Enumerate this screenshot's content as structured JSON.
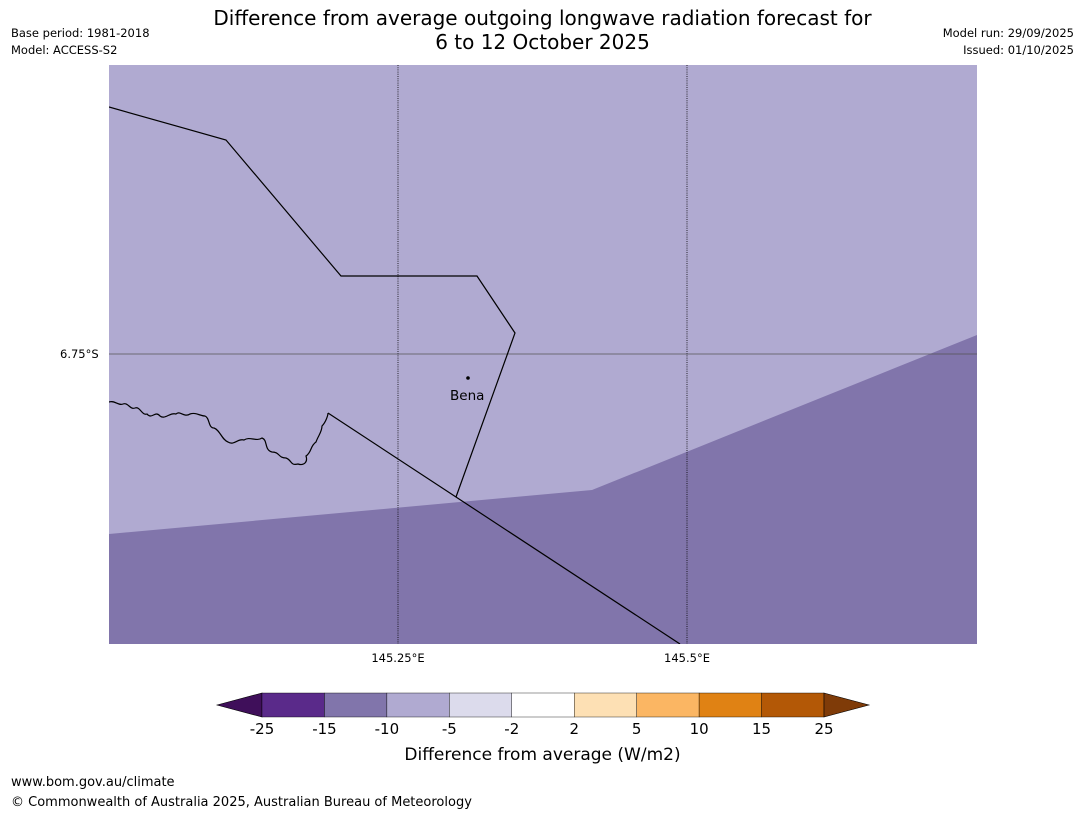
{
  "header": {
    "title_line1": "Difference from average outgoing longwave radiation forecast for",
    "title_line2": "6 to 12 October 2025",
    "base_period": "Base period: 1981-2018",
    "model": "Model: ACCESS-S2",
    "model_run": "Model run: 29/09/2025",
    "issued": "Issued: 01/10/2025"
  },
  "map": {
    "lat_labels": [
      "6.75°S"
    ],
    "lon_labels": [
      "145.25°E",
      "145.5°E"
    ],
    "place": "Bena",
    "colors": {
      "light_band": "#b0aad1",
      "dark_band": "#8175ab"
    }
  },
  "legend": {
    "title": "Difference from average (W/m2)",
    "ticks": [
      "-25",
      "-15",
      "-10",
      "-5",
      "-2",
      "2",
      "5",
      "10",
      "15",
      "25"
    ],
    "colors": [
      "#3f0f5a",
      "#5a2a8a",
      "#8175ab",
      "#b0aad1",
      "#dcdbec",
      "#ffffff",
      "#fde0b4",
      "#fbb663",
      "#e08214",
      "#b35806",
      "#7f3b08"
    ]
  },
  "footer": {
    "url": "www.bom.gov.au/climate",
    "copyright": "© Commonwealth of Australia 2025, Australian Bureau of Meteorology"
  }
}
